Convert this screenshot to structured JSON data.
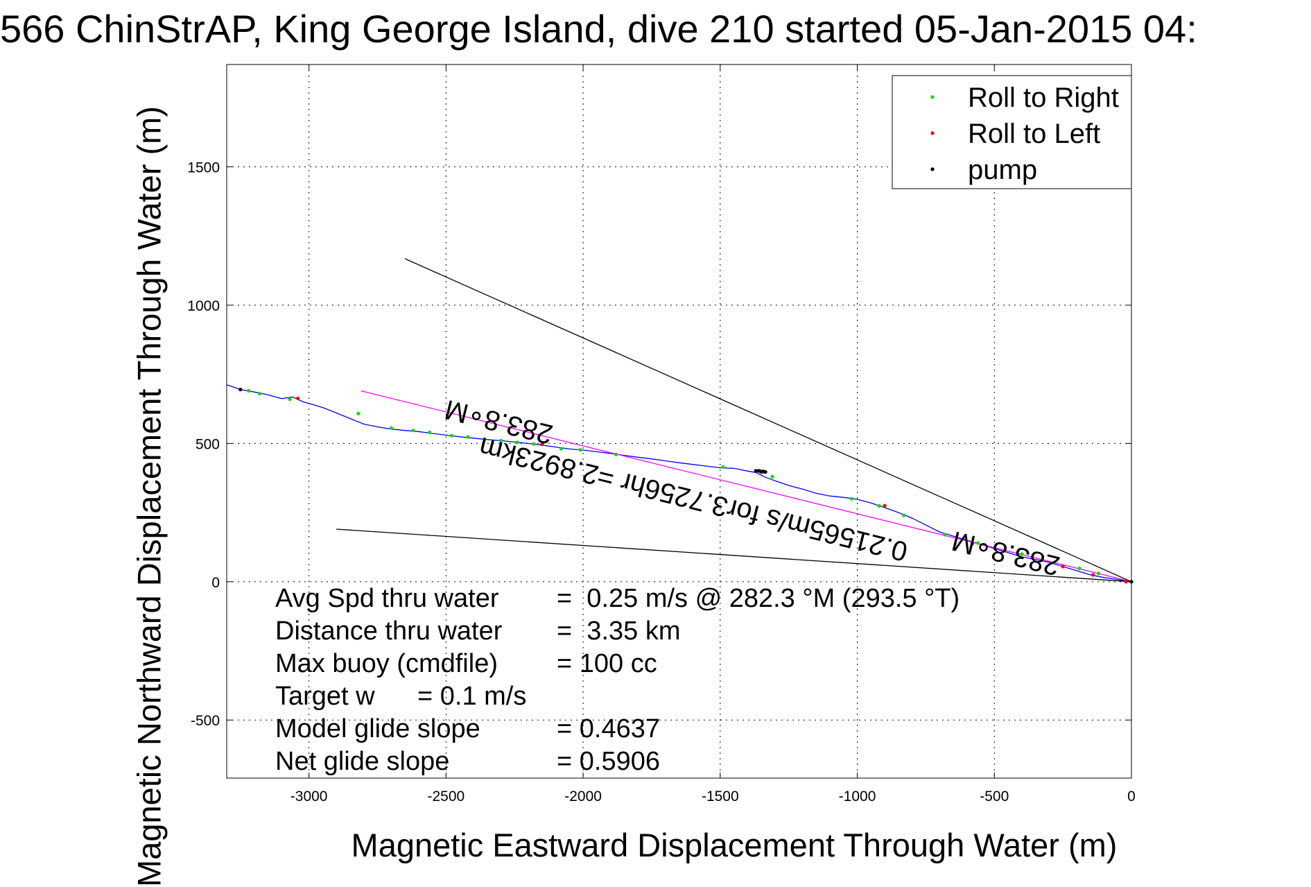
{
  "chart_data": {
    "type": "line",
    "title": "566 ChinStrAP, King George Island, dive 210 started 05-Jan-2015 04:",
    "xlabel": "Magnetic Eastward Displacement Through Water (m)",
    "ylabel": "Magnetic Northward Displacement Through Water (m)",
    "xlim": [
      -3300,
      0
    ],
    "ylim": [
      -710,
      1870
    ],
    "xticks": [
      -3000,
      -2500,
      -2000,
      -1500,
      -1000,
      -500,
      0
    ],
    "yticks": [
      -500,
      0,
      500,
      1000,
      1500
    ],
    "grid": true,
    "legend_position": "top-right",
    "legend": [
      {
        "label": "Roll to Right",
        "color": "#00dd00"
      },
      {
        "label": "Roll to Left",
        "color": "#ff0000"
      },
      {
        "label": "pump",
        "color": "#000000"
      }
    ],
    "series": [
      {
        "color": "#0000ff",
        "x": [
          -3300,
          -3250,
          -3200,
          -3150,
          -3100,
          -3060,
          -3020,
          -3000,
          -2950,
          -2900,
          -2850,
          -2800,
          -2750,
          -2700,
          -2650,
          -2600,
          -2550,
          -2500,
          -2450,
          -2400,
          -2350,
          -2300,
          -2250,
          -2200,
          -2150,
          -2100,
          -2050,
          -2000,
          -1950,
          -1900,
          -1850,
          -1800,
          -1750,
          -1700,
          -1650,
          -1600,
          -1550,
          -1500,
          -1450,
          -1400,
          -1370,
          -1340,
          -1300,
          -1250,
          -1200,
          -1150,
          -1100,
          -1050,
          -1000,
          -950,
          -900,
          -850,
          -800,
          -750,
          -700,
          -650,
          -600,
          -550,
          -500,
          -450,
          -400,
          -350,
          -300,
          -250,
          -200,
          -150,
          -100,
          -50,
          0
        ],
        "y": [
          712,
          695,
          686,
          676,
          662,
          668,
          650,
          645,
          630,
          610,
          590,
          570,
          560,
          552,
          547,
          543,
          536,
          530,
          524,
          519,
          514,
          510,
          505,
          500,
          494,
          487,
          480,
          476,
          470,
          464,
          457,
          450,
          444,
          437,
          430,
          424,
          418,
          412,
          410,
          400,
          395,
          380,
          365,
          348,
          335,
          320,
          310,
          305,
          298,
          285,
          268,
          250,
          230,
          205,
          180,
          165,
          150,
          135,
          120,
          105,
          90,
          80,
          70,
          55,
          40,
          25,
          15,
          8,
          0
        ]
      },
      {
        "color": "#ff00ff",
        "x": [
          -2810,
          0
        ],
        "y": [
          690,
          0
        ]
      },
      {
        "color": "#000000",
        "x": [
          -2650,
          0
        ],
        "y": [
          1168,
          0
        ]
      },
      {
        "color": "#000000",
        "x": [
          -2900,
          0
        ],
        "y": [
          190,
          0
        ]
      }
    ],
    "markers": {
      "roll_right": {
        "color": "#00dd00",
        "x": [
          -3220,
          -3180,
          -3070,
          -2820,
          -2700,
          -2620,
          -2560,
          -2480,
          -2420,
          -2360,
          -2300,
          -2240,
          -2180,
          -2080,
          -2010,
          -1880,
          -1490,
          -1310,
          -1020,
          -920,
          -830,
          -680,
          -560,
          -400,
          -190,
          -120
        ],
        "y": [
          690,
          680,
          660,
          608,
          556,
          547,
          540,
          528,
          523,
          516,
          510,
          504,
          498,
          481,
          477,
          460,
          415,
          380,
          300,
          274,
          240,
          170,
          140,
          100,
          48,
          30
        ]
      },
      "roll_left": {
        "color": "#ff0000",
        "x": [
          -3040,
          -2150,
          -1350,
          -900,
          -580,
          -250,
          -140,
          -20
        ],
        "y": [
          663,
          497,
          396,
          275,
          138,
          55,
          25,
          0
        ]
      },
      "pump": {
        "color": "#000000",
        "x": [
          -3250,
          -1370,
          -1360,
          -1355,
          -1345,
          -1340,
          -1335,
          0
        ],
        "y": [
          695,
          401,
          401,
          400,
          399,
          398,
          397,
          0
        ]
      }
    },
    "annotations": [
      {
        "text": "283.8∘M",
        "x": -2300,
        "y": 610
      },
      {
        "text": "0.21565m/s for3.7256hr =2.8923km",
        "x": -1590,
        "y": 330
      },
      {
        "text": "283.8∘M",
        "x": -450,
        "y": 135
      }
    ],
    "info_lines": [
      {
        "label": "Avg Spd thru water",
        "value": "=  0.25 m/s @ 282.3 °M (293.5 °T)"
      },
      {
        "label": "Distance thru water",
        "value": "=  3.35 km"
      },
      {
        "label": "Max buoy (cmdfile)",
        "value": "= 100 cc"
      },
      {
        "label": "Target w",
        "value": "= 0.1 m/s"
      },
      {
        "label": "Model glide slope",
        "value": "= 0.4637"
      },
      {
        "label": "Net glide slope",
        "value": "= 0.5906"
      }
    ]
  }
}
